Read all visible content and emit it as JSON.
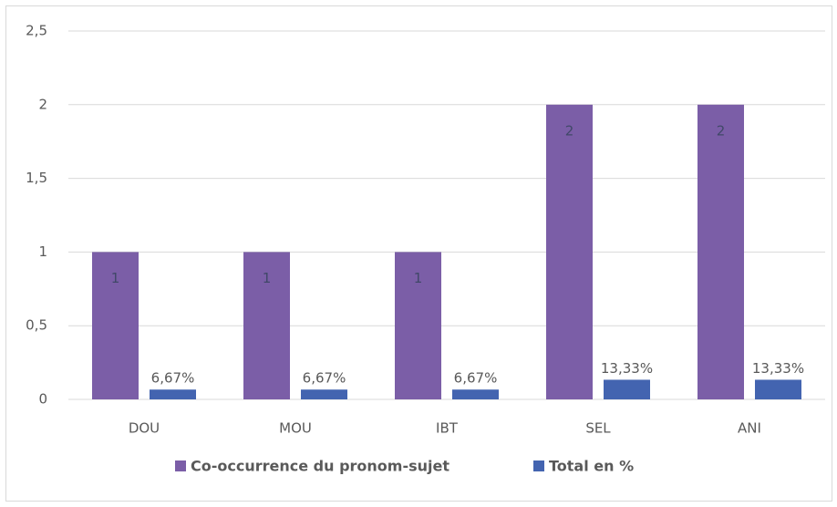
{
  "chart_data": {
    "type": "bar",
    "categories": [
      "DOU",
      "MOU",
      "IBT",
      "SEL",
      "ANI"
    ],
    "series": [
      {
        "name": "Co-occurrence du pronom-sujet",
        "color": "#7b5ea7",
        "values": [
          1,
          1,
          1,
          2,
          2
        ]
      },
      {
        "name": "Total en %",
        "color": "#4364b0",
        "values": [
          0.0667,
          0.0667,
          0.0667,
          0.1333,
          0.1333
        ],
        "value_labels": [
          "6,67%",
          "6,67%",
          "6,67%",
          "13,33%",
          "13,33%"
        ]
      }
    ],
    "ylim": [
      0,
      2.5
    ],
    "yticks": [
      0,
      {
        "value": 0.5,
        "label": "0,5"
      },
      1,
      {
        "value": 1.5,
        "label": "1,5"
      },
      2,
      {
        "value": 2.5,
        "label": "2,5"
      }
    ],
    "grid": true,
    "legend": "bottom"
  }
}
